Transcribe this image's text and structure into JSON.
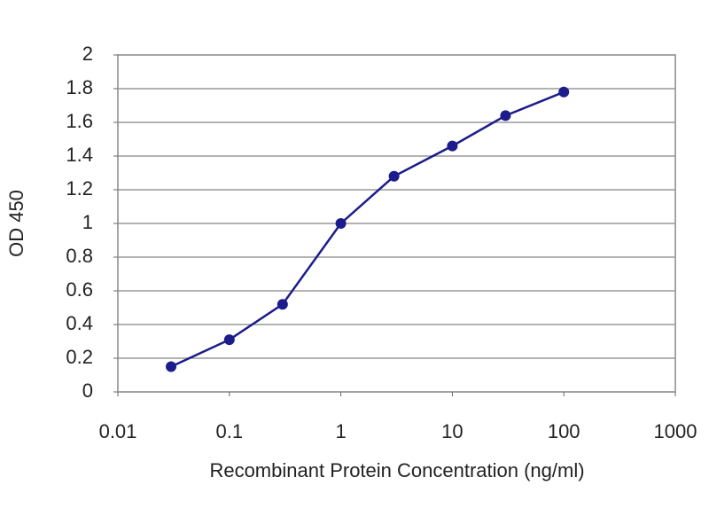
{
  "chart_data": {
    "type": "line",
    "x_label": "Recombinant Protein Concentration (ng/ml)",
    "y_label": "OD 450",
    "x": [
      0.03,
      0.1,
      0.3,
      1,
      3,
      10,
      30,
      100
    ],
    "values": [
      0.15,
      0.31,
      0.52,
      1.0,
      1.28,
      1.46,
      1.64,
      1.78
    ],
    "color": "#1c1c8c",
    "xscale": "log",
    "xlim": [
      0.01,
      1000
    ],
    "xticks": [
      0.01,
      0.1,
      1,
      10,
      100,
      1000
    ],
    "ylim": [
      0,
      2
    ],
    "yticks": [
      0,
      0.2,
      0.4,
      0.6,
      0.8,
      1,
      1.2,
      1.4,
      1.6,
      1.8,
      2
    ],
    "grid": true
  }
}
